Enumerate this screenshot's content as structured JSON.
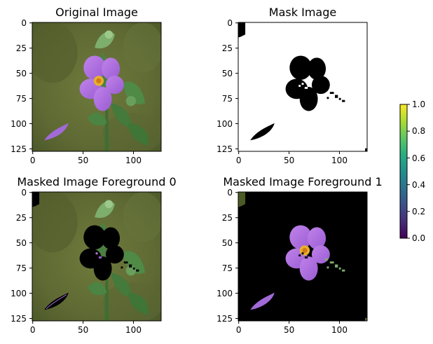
{
  "chart_data": [
    {
      "type": "image",
      "title": "Original Image",
      "content": "flower photo",
      "xticks": [
        0,
        50,
        100
      ],
      "yticks": [
        0,
        25,
        50,
        75,
        100,
        125
      ],
      "xlim": [
        0,
        127
      ],
      "ylim": [
        127,
        0
      ]
    },
    {
      "type": "heatmap",
      "title": "Mask Image",
      "content": "binary mask: black = 0 (flower), white = 1 (background)",
      "xticks": [
        0,
        50,
        100
      ],
      "yticks": [
        0,
        25,
        50,
        75,
        100,
        125
      ],
      "xlim": [
        0,
        127
      ],
      "ylim": [
        127,
        0
      ]
    },
    {
      "type": "image",
      "title": "Masked Image Foreground 0",
      "content": "photo with flower region set to black",
      "xticks": [
        0,
        50,
        100
      ],
      "yticks": [
        0,
        25,
        50,
        75,
        100,
        125
      ],
      "xlim": [
        0,
        127
      ],
      "ylim": [
        127,
        0
      ]
    },
    {
      "type": "image",
      "title": "Masked Image Foreground 1",
      "content": "photo with background set to black",
      "xticks": [
        0,
        50,
        100
      ],
      "yticks": [
        0,
        25,
        50,
        75,
        100,
        125
      ],
      "xlim": [
        0,
        127
      ],
      "ylim": [
        127,
        0
      ]
    },
    {
      "type": "colorbar",
      "colormap": "viridis",
      "range": [
        0.0,
        1.0
      ],
      "ticks": [
        "0.0",
        "0.2",
        "0.4",
        "0.6",
        "0.8",
        "1.0"
      ]
    }
  ]
}
